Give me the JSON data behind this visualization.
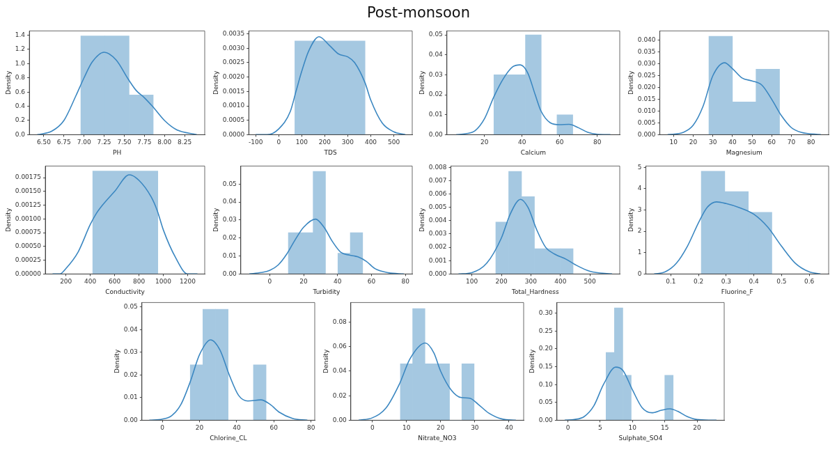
{
  "chart_data": [
    {
      "type": "other",
      "title": "Post-monsoon"
    },
    {
      "type": "histogram",
      "xlabel": "PH",
      "ylabel": "Density",
      "bins": [
        6.96,
        7.26,
        7.56,
        7.86
      ],
      "xlim": [
        6.32,
        8.5
      ],
      "ylim": [
        0,
        1.46
      ],
      "xticks": [
        {
          "value": 6.5,
          "label": "6.50"
        },
        6.75,
        {
          "value": 7,
          "label": "7.00"
        },
        7.25,
        {
          "value": 7.5,
          "label": "7.50"
        },
        7.75,
        {
          "value": 8,
          "label": "8.00"
        },
        8.25
      ],
      "yticks": [
        {
          "value": 0,
          "label": "0.0"
        },
        0.2,
        0.4,
        0.6,
        0.8,
        {
          "value": 1,
          "label": "1.0"
        },
        1.2,
        1.4
      ],
      "series": [
        {
          "color": "#a5c8e1",
          "values": [
            1.39,
            1.39,
            0.56
          ]
        },
        {
          "type": "line",
          "color": "#3b87c1",
          "x": [
            6.42,
            6.6,
            6.75,
            6.9,
            7.0,
            7.1,
            7.25,
            7.4,
            7.55,
            7.65,
            7.75,
            7.85,
            8.0,
            8.15,
            8.4
          ],
          "values": [
            0,
            0.05,
            0.2,
            0.55,
            0.8,
            1.02,
            1.16,
            1.05,
            0.78,
            0.62,
            0.52,
            0.4,
            0.2,
            0.07,
            0
          ]
        }
      ]
    },
    {
      "type": "histogram",
      "xlabel": "TDS",
      "ylabel": "Density",
      "bins": [
        70,
        375
      ],
      "xlim": [
        -130,
        580
      ],
      "ylim": [
        0,
        0.0036
      ],
      "xticks": [
        -100,
        0,
        100,
        200,
        300,
        400,
        500
      ],
      "yticks": [
        {
          "value": 0,
          "label": "0.0000"
        },
        0.0005,
        {
          "value": 0.001,
          "label": "0.0010"
        },
        0.0015,
        {
          "value": 0.002,
          "label": "0.0020"
        },
        0.0025,
        {
          "value": 0.003,
          "label": "0.0030"
        },
        0.0035
      ],
      "series": [
        {
          "color": "#a5c8e1",
          "values": [
            0.00325
          ]
        },
        {
          "type": "line",
          "color": "#3b87c1",
          "x": [
            -100,
            -50,
            0,
            50,
            75,
            100,
            130,
            175,
            220,
            260,
            300,
            330,
            375,
            400,
            450,
            500,
            550
          ],
          "values": [
            0,
            0,
            0.0002,
            0.0008,
            0.0015,
            0.0022,
            0.0029,
            0.0034,
            0.0031,
            0.0028,
            0.0027,
            0.0025,
            0.0018,
            0.0012,
            0.0004,
            0.0001,
            0
          ]
        }
      ]
    },
    {
      "type": "histogram",
      "xlabel": "Calcium",
      "ylabel": "Density",
      "bins": [
        25,
        33.4,
        41.8,
        50.2,
        58.6,
        67
      ],
      "xlim": [
        0,
        92
      ],
      "ylim": [
        0,
        0.052
      ],
      "xticks": [
        20,
        40,
        60,
        80
      ],
      "yticks": [
        {
          "value": 0,
          "label": "0.00"
        },
        0.01,
        0.02,
        0.03,
        0.04,
        0.05
      ],
      "series": [
        {
          "color": "#a5c8e1",
          "values": [
            0.03,
            0.03,
            0.05,
            0,
            0.01
          ]
        },
        {
          "type": "line",
          "color": "#3b87c1",
          "x": [
            5,
            10,
            15,
            20,
            25,
            30,
            35,
            39,
            43,
            47,
            50,
            55,
            60,
            65,
            70,
            75,
            80,
            87
          ],
          "values": [
            0,
            0.0005,
            0.002,
            0.008,
            0.019,
            0.028,
            0.034,
            0.035,
            0.031,
            0.02,
            0.012,
            0.006,
            0.005,
            0.0052,
            0.0035,
            0.0012,
            0.0002,
            0
          ]
        }
      ]
    },
    {
      "type": "histogram",
      "xlabel": "Magnesium",
      "ylabel": "Density",
      "bins": [
        28,
        40,
        52,
        64
      ],
      "xlim": [
        3,
        89
      ],
      "ylim": [
        0,
        0.044
      ],
      "xticks": [
        10,
        20,
        30,
        40,
        50,
        60,
        70,
        80
      ],
      "yticks": [
        {
          "value": 0,
          "label": "0.000"
        },
        0.005,
        {
          "value": 0.01,
          "label": "0.010"
        },
        0.015,
        {
          "value": 0.02,
          "label": "0.020"
        },
        0.025,
        {
          "value": 0.03,
          "label": "0.030"
        },
        0.035,
        {
          "value": 0.04,
          "label": "0.040"
        }
      ],
      "series": [
        {
          "color": "#a5c8e1",
          "values": [
            0.0417,
            0.0139,
            0.0278
          ]
        },
        {
          "type": "line",
          "color": "#3b87c1",
          "x": [
            7,
            15,
            20,
            25,
            30,
            36,
            40,
            45,
            50,
            55,
            60,
            65,
            70,
            75,
            85
          ],
          "values": [
            0,
            0.001,
            0.004,
            0.012,
            0.025,
            0.0305,
            0.028,
            0.024,
            0.0228,
            0.021,
            0.015,
            0.008,
            0.003,
            0.001,
            0
          ]
        }
      ]
    },
    {
      "type": "histogram",
      "xlabel": "Conductivity",
      "ylabel": "Density",
      "bins": [
        420,
        955
      ],
      "xlim": [
        30,
        1340
      ],
      "ylim": [
        0,
        0.00196
      ],
      "xticks": [
        200,
        400,
        600,
        800,
        1000,
        1200
      ],
      "yticks": [
        {
          "value": 0,
          "label": "0.00000"
        },
        0.00025,
        {
          "value": 0.0005,
          "label": "0.00050"
        },
        0.00075,
        {
          "value": 0.001,
          "label": "0.00100"
        },
        0.00125,
        {
          "value": 0.0015,
          "label": "0.00150"
        },
        0.00175
      ],
      "series": [
        {
          "color": "#a5c8e1",
          "values": [
            0.00187
          ]
        },
        {
          "type": "line",
          "color": "#3b87c1",
          "x": [
            90,
            150,
            200,
            300,
            400,
            450,
            500,
            600,
            720,
            800,
            900,
            950,
            1000,
            1100,
            1200,
            1280
          ],
          "values": [
            0,
            0,
            0.0001,
            0.0004,
            0.0009,
            0.0011,
            0.00125,
            0.0015,
            0.0018,
            0.0017,
            0.0014,
            0.00115,
            0.0008,
            0.0003,
            0,
            0
          ]
        }
      ]
    },
    {
      "type": "histogram",
      "xlabel": "Turbidity",
      "ylabel": "Density",
      "bins": [
        11,
        18.3,
        25.6,
        32.9,
        40.2,
        47.5,
        54.8
      ],
      "xlim": [
        -17,
        84
      ],
      "ylim": [
        0,
        0.06
      ],
      "xticks": [
        0,
        20,
        40,
        60,
        80
      ],
      "yticks": [
        {
          "value": 0,
          "label": "0.00"
        },
        0.01,
        0.02,
        0.03,
        0.04,
        0.05
      ],
      "series": [
        {
          "color": "#a5c8e1",
          "values": [
            0.023,
            0.023,
            0.057,
            0,
            0.0115,
            0.023
          ]
        },
        {
          "type": "line",
          "color": "#3b87c1",
          "x": [
            -12,
            -5,
            0,
            5,
            10,
            15,
            20,
            27,
            32,
            37,
            42,
            47,
            52,
            57,
            62,
            70,
            79
          ],
          "values": [
            0,
            0.0008,
            0.002,
            0.005,
            0.011,
            0.019,
            0.026,
            0.0305,
            0.026,
            0.018,
            0.012,
            0.0105,
            0.0095,
            0.007,
            0.003,
            0.0007,
            0
          ]
        }
      ]
    },
    {
      "type": "histogram",
      "xlabel": "Total_Hardness",
      "ylabel": "Density",
      "bins": [
        181,
        224.7,
        268.3,
        312,
        355.7,
        399.3,
        443
      ],
      "xlim": [
        29,
        601
      ],
      "ylim": [
        0,
        0.0081
      ],
      "xticks": [
        100,
        200,
        300,
        400,
        500
      ],
      "yticks": [
        {
          "value": 0,
          "label": "0.000"
        },
        0.001,
        0.002,
        0.003,
        0.004,
        0.005,
        0.006,
        0.007,
        0.008
      ],
      "series": [
        {
          "color": "#a5c8e1",
          "values": [
            0.0039,
            0.0077,
            0.0058,
            0.0019,
            0.0019,
            0.0019
          ]
        },
        {
          "type": "line",
          "color": "#3b87c1",
          "x": [
            55,
            100,
            150,
            200,
            230,
            265,
            290,
            320,
            350,
            380,
            420,
            450,
            500,
            575
          ],
          "values": [
            0,
            0.0001,
            0.0008,
            0.0027,
            0.0045,
            0.0056,
            0.005,
            0.0033,
            0.002,
            0.0015,
            0.0011,
            0.0007,
            0.0002,
            0
          ]
        }
      ]
    },
    {
      "type": "histogram",
      "xlabel": "Fluorine_F",
      "ylabel": "Density",
      "bins": [
        0.21,
        0.295,
        0.38,
        0.465
      ],
      "xlim": [
        0.01,
        0.67
      ],
      "ylim": [
        0,
        5.06
      ],
      "xticks": [
        0.1,
        0.2,
        0.3,
        0.4,
        0.5,
        0.6
      ],
      "yticks": [
        0,
        1,
        2,
        3,
        4,
        5
      ],
      "series": [
        {
          "color": "#a5c8e1",
          "values": [
            4.82,
            3.86,
            2.89
          ]
        },
        {
          "type": "line",
          "color": "#3b87c1",
          "x": [
            0.04,
            0.08,
            0.12,
            0.16,
            0.2,
            0.23,
            0.265,
            0.3,
            0.35,
            0.4,
            0.45,
            0.5,
            0.55,
            0.6,
            0.64
          ],
          "values": [
            0,
            0.1,
            0.5,
            1.3,
            2.4,
            3.1,
            3.38,
            3.3,
            3.1,
            2.8,
            2.2,
            1.3,
            0.5,
            0.1,
            0
          ]
        }
      ]
    },
    {
      "type": "histogram",
      "xlabel": "Chlorine_CL",
      "ylabel": "Density",
      "bins": [
        15,
        21.8,
        28.6,
        35.4,
        42.2,
        49,
        55.8
      ],
      "xlim": [
        -11,
        82
      ],
      "ylim": [
        0,
        0.052
      ],
      "xticks": [
        0,
        20,
        40,
        60,
        80
      ],
      "yticks": [
        {
          "value": 0,
          "label": "0.00"
        },
        0.01,
        0.02,
        0.03,
        0.04,
        0.05
      ],
      "series": [
        {
          "color": "#a5c8e1",
          "values": [
            0.0245,
            0.049,
            0.049,
            0,
            0,
            0.0245
          ]
        },
        {
          "type": "line",
          "color": "#3b87c1",
          "x": [
            -7,
            0,
            5,
            10,
            15,
            20,
            26,
            31,
            36,
            41,
            46,
            53,
            58,
            63,
            70,
            78
          ],
          "values": [
            0,
            0.0005,
            0.002,
            0.007,
            0.017,
            0.029,
            0.0355,
            0.031,
            0.02,
            0.011,
            0.0085,
            0.009,
            0.007,
            0.0035,
            0.0008,
            0
          ]
        }
      ]
    },
    {
      "type": "histogram",
      "xlabel": "Nitrate_NO3",
      "ylabel": "Density",
      "bins": [
        8.2,
        11.8,
        15.4,
        19,
        22.6,
        26.2,
        29.8
      ],
      "xlim": [
        -6.3,
        44.3
      ],
      "ylim": [
        0,
        0.096
      ],
      "xticks": [
        0,
        10,
        20,
        30,
        40
      ],
      "yticks": [
        {
          "value": 0,
          "label": "0.00"
        },
        0.02,
        0.04,
        0.06,
        0.08
      ],
      "series": [
        {
          "color": "#a5c8e1",
          "values": [
            0.046,
            0.091,
            0.046,
            0.046,
            0,
            0.046
          ]
        },
        {
          "type": "line",
          "color": "#3b87c1",
          "x": [
            -4,
            0,
            4,
            8,
            11,
            15.5,
            18,
            20,
            23,
            26,
            28.5,
            31,
            34,
            38,
            42
          ],
          "values": [
            0,
            0.002,
            0.01,
            0.03,
            0.05,
            0.063,
            0.055,
            0.04,
            0.025,
            0.0185,
            0.018,
            0.013,
            0.006,
            0.001,
            0
          ]
        }
      ]
    },
    {
      "type": "histogram",
      "xlabel": "Sulphate_SO4",
      "ylabel": "Density",
      "bins": [
        5.9,
        7.2,
        8.5,
        9.8,
        11.1,
        12.4,
        13.7,
        15,
        16.3
      ],
      "xlim": [
        -1.7,
        24.2
      ],
      "ylim": [
        0,
        0.33
      ],
      "xticks": [
        0,
        5,
        10,
        15,
        20
      ],
      "yticks": [
        {
          "value": 0,
          "label": "0.00"
        },
        0.05,
        {
          "value": 0.1,
          "label": "0.10"
        },
        0.15,
        {
          "value": 0.2,
          "label": "0.20"
        },
        0.25,
        {
          "value": 0.3,
          "label": "0.30"
        }
      ],
      "series": [
        {
          "color": "#a5c8e1",
          "values": [
            0.19,
            0.315,
            0.126,
            0,
            0,
            0,
            0,
            0.126
          ]
        },
        {
          "type": "line",
          "color": "#3b87c1",
          "x": [
            -0.5,
            1,
            2.5,
            4,
            5.5,
            7.4,
            8.5,
            10,
            11.5,
            13,
            14.5,
            15.8,
            17,
            18.5,
            20,
            23
          ],
          "values": [
            0,
            0.002,
            0.01,
            0.04,
            0.1,
            0.149,
            0.14,
            0.085,
            0.035,
            0.021,
            0.028,
            0.032,
            0.025,
            0.01,
            0.002,
            0
          ]
        }
      ]
    }
  ]
}
